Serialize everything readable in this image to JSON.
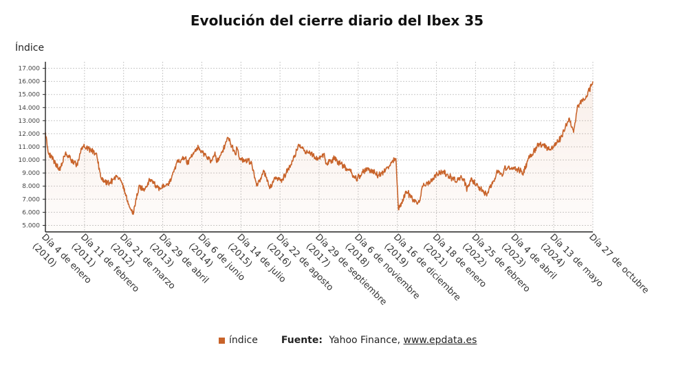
{
  "chart_data": {
    "type": "area",
    "title": "Evolución del cierre diario del Ibex 35",
    "ylabel": "Índice",
    "xlabel": "",
    "ylim": [
      4500,
      17500
    ],
    "y_ticks": [
      "5.000",
      "6.000",
      "7.000",
      "8.000",
      "9.000",
      "10.000",
      "11.000",
      "12.000",
      "13.000",
      "14.000",
      "15.000",
      "16.000",
      "17.000"
    ],
    "y_tick_values": [
      5000,
      6000,
      7000,
      8000,
      9000,
      10000,
      11000,
      12000,
      13000,
      14000,
      15000,
      16000,
      17000
    ],
    "x_ticks": [
      [
        "Día 4 de enero",
        "(2010)"
      ],
      [
        "Día 11 de febrero",
        "(2011)"
      ],
      [
        "Día 21 de marzo",
        "(2012)"
      ],
      [
        "Día 29 de abril",
        "(2013)"
      ],
      [
        "Día 6 de junio",
        "(2014)"
      ],
      [
        "Día 14 de julio",
        "(2015)"
      ],
      [
        "Día 22 de agosto",
        "(2016)"
      ],
      [
        "Día 29 de septiembre",
        "(2017)"
      ],
      [
        "Día 6 de noviembre",
        "(2018)"
      ],
      [
        "Día 16 de diciembre",
        "(2019)"
      ],
      [
        "Día 18 de enero",
        "(2021)"
      ],
      [
        "Día 25 de febrero",
        "(2022)"
      ],
      [
        "Día 4 de abril",
        "(2023)"
      ],
      [
        "Día 13 de mayo",
        "(2024)"
      ],
      [
        "Día 27 de octubre",
        ""
      ]
    ],
    "grid": true,
    "color": "#c8632a",
    "series": [
      {
        "name": "índice",
        "x": [
          "2010-01-04",
          "2010-02-05",
          "2010-05-07",
          "2010-06-08",
          "2010-08-02",
          "2010-11-30",
          "2011-01-20",
          "2011-02-11",
          "2011-04-12",
          "2011-06-28",
          "2011-08-10",
          "2011-09-23",
          "2011-11-18",
          "2011-12-30",
          "2012-02-08",
          "2012-03-21",
          "2012-05-18",
          "2012-06-08",
          "2012-07-24",
          "2012-09-14",
          "2012-11-15",
          "2013-01-07",
          "2013-04-29",
          "2013-06-24",
          "2013-08-23",
          "2013-10-21",
          "2014-01-20",
          "2014-02-04",
          "2014-04-07",
          "2014-06-06",
          "2014-08-07",
          "2014-10-17",
          "2014-11-28",
          "2014-12-16",
          "2015-01-30",
          "2015-04-13",
          "2015-07-08",
          "2015-07-14",
          "2015-08-24",
          "2015-10-13",
          "2015-12-14",
          "2016-02-11",
          "2016-04-28",
          "2016-06-27",
          "2016-08-22",
          "2016-11-04",
          "2017-01-25",
          "2017-05-05",
          "2017-07-20",
          "2017-09-29",
          "2017-11-17",
          "2018-01-23",
          "2018-02-09",
          "2018-05-14",
          "2018-07-19",
          "2018-10-12",
          "2018-11-06",
          "2018-12-27",
          "2019-04-23",
          "2019-08-15",
          "2019-10-30",
          "2019-12-16",
          "2020-02-19",
          "2020-03-16",
          "2020-06-08",
          "2020-09-25",
          "2020-10-30",
          "2020-11-23",
          "2021-01-18",
          "2021-05-24",
          "2021-06-14",
          "2021-11-26",
          "2022-01-10",
          "2022-02-25",
          "2022-03-07",
          "2022-04-21",
          "2022-07-06",
          "2022-09-29",
          "2022-12-13",
          "2023-02-03",
          "2023-03-20",
          "2023-04-04",
          "2023-07-27",
          "2023-10-26",
          "2023-12-14",
          "2024-03-27",
          "2024-05-13",
          "2024-08-05",
          "2024-11-19",
          "2025-02-20",
          "2025-04-07",
          "2025-05-23",
          "2025-08-22",
          "2025-10-27"
        ],
        "values": [
          12100,
          10500,
          9600,
          9200,
          10500,
          9600,
          10800,
          11000,
          10800,
          10500,
          8700,
          8300,
          8300,
          8600,
          8700,
          8300,
          6800,
          6400,
          6000,
          7900,
          7800,
          8500,
          7800,
          8000,
          8500,
          9800,
          10200,
          9700,
          10400,
          10900,
          10500,
          9900,
          10600,
          9800,
          10400,
          11700,
          10400,
          11000,
          10000,
          10000,
          9900,
          8000,
          9100,
          7800,
          8600,
          8500,
          9500,
          11100,
          10600,
          10300,
          10000,
          10500,
          9700,
          10100,
          9700,
          9200,
          9000,
          8500,
          9400,
          8800,
          9200,
          9600,
          10100,
          6200,
          7600,
          6700,
          6900,
          8000,
          8200,
          9100,
          9100,
          8400,
          8700,
          8200,
          7600,
          8600,
          7900,
          7400,
          8400,
          9200,
          8800,
          9300,
          9400,
          9000,
          10100,
          11100,
          11200,
          10800,
          11600,
          13200,
          12100,
          14200,
          14800,
          16000
        ]
      }
    ]
  },
  "legend": {
    "label": "índice"
  },
  "source": {
    "label": "Fuente:",
    "text": " Yahoo Finance, ",
    "link": "www.epdata.es"
  }
}
